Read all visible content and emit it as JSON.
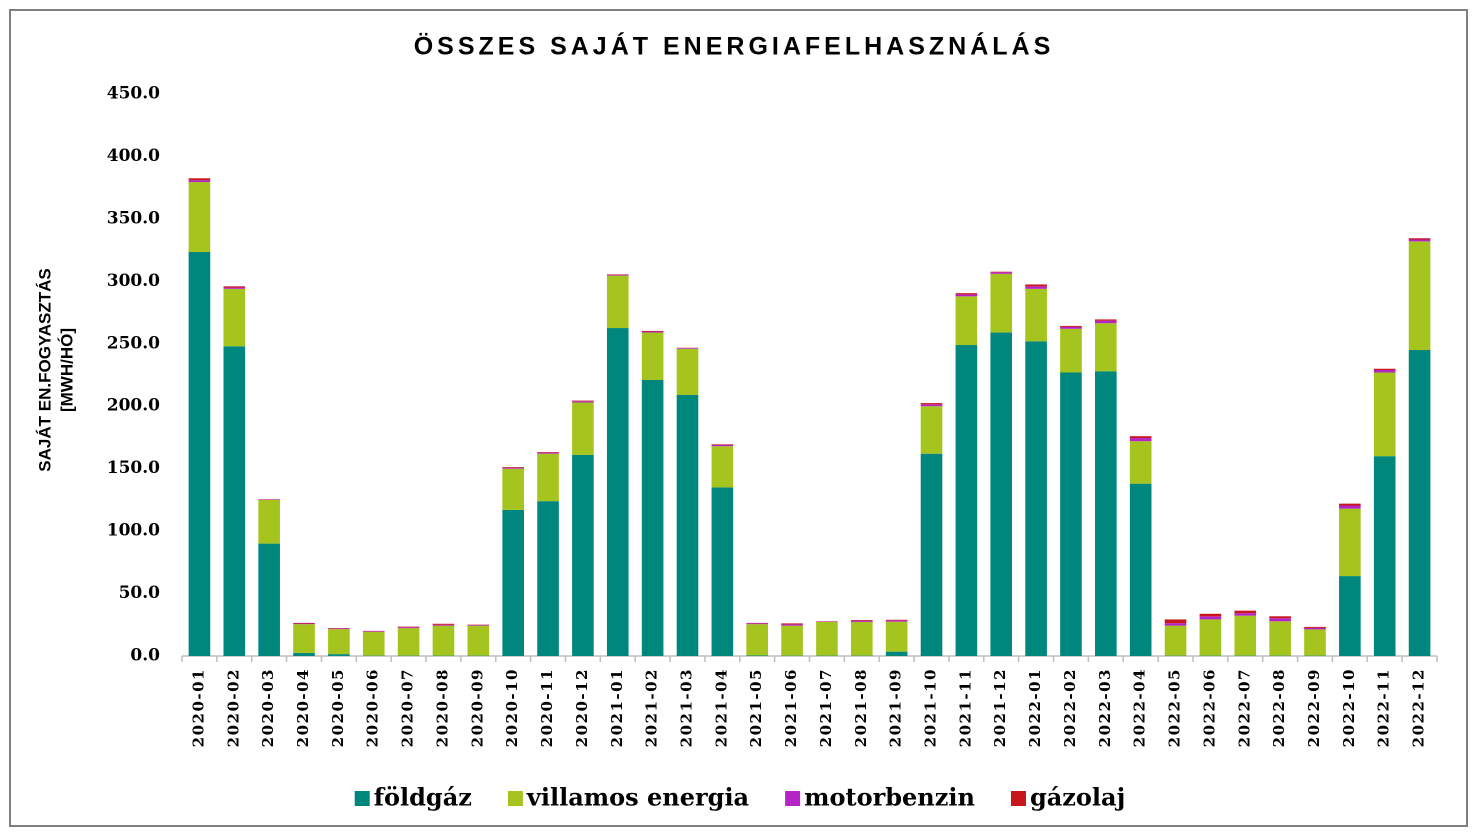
{
  "chart_data": {
    "type": "stacked_bar",
    "title": "ÖSSZES SAJÁT ENERGIAFELHASZNÁLÁS",
    "y_label": [
      "SAJÁT EN.FOGYASZTÁS",
      "[MWH/HÓ]"
    ],
    "categories": [
      "2020-01",
      "2020-02",
      "2020-03",
      "2020-04",
      "2020-05",
      "2020-06",
      "2020-07",
      "2020-08",
      "2020-09",
      "2020-10",
      "2020-11",
      "2020-12",
      "2021-01",
      "2021-02",
      "2021-03",
      "2021-04",
      "2021-05",
      "2021-06",
      "2021-07",
      "2021-08",
      "2021-09",
      "2021-10",
      "2021-11",
      "2021-12",
      "2022-01",
      "2022-02",
      "2022-03",
      "2022-04",
      "2022-05",
      "2022-06",
      "2022-07",
      "2022-08",
      "2022-09",
      "2022-10",
      "2022-11",
      "2022-12"
    ],
    "series": [
      {
        "name": "földgáz",
        "color": "#00877d",
        "values": [
          323.5,
          248,
          90,
          2.5,
          1.5,
          0.3,
          0.3,
          0.3,
          0.3,
          117,
          124,
          161,
          262.6,
          221,
          209,
          135,
          0.5,
          0.3,
          0.3,
          0.3,
          3.5,
          162,
          249,
          259,
          252,
          227,
          228,
          138,
          0.3,
          0.3,
          0.3,
          0.3,
          0.3,
          64,
          160,
          245
        ]
      },
      {
        "name": "villamos energia",
        "color": "#a5c41d",
        "values": [
          56,
          46,
          35,
          23,
          20,
          19,
          22,
          24,
          24,
          33,
          38,
          42,
          42,
          38,
          37,
          33,
          25,
          24,
          27,
          27,
          24,
          38,
          39,
          47,
          42,
          35,
          38.5,
          34,
          24,
          29,
          32,
          27.5,
          21,
          54,
          67,
          87
        ]
      },
      {
        "name": "motorbenzin",
        "color": "#b524c6",
        "values": [
          1.5,
          1,
          0.3,
          0.5,
          0.5,
          0.5,
          0.7,
          0.7,
          0.5,
          0.8,
          0.8,
          1,
          0.6,
          0.8,
          0.5,
          1,
          0.7,
          1,
          0.3,
          1,
          1,
          1.5,
          1.5,
          1.2,
          2,
          1.5,
          2,
          2.5,
          2,
          2.5,
          2,
          2.5,
          1.2,
          2.5,
          2,
          1.5
        ]
      },
      {
        "name": "gázolaj",
        "color": "#c8161d",
        "values": [
          1.5,
          1,
          0.2,
          0.5,
          0.3,
          0.3,
          0.5,
          0.8,
          0.3,
          0.5,
          0.5,
          0.5,
          0.4,
          0.5,
          0.3,
          0.5,
          0.3,
          0.8,
          0.2,
          0.5,
          0.5,
          1,
          1,
          0.5,
          1.5,
          0.8,
          1,
          1.5,
          3,
          2,
          2,
          1.5,
          0.8,
          1.5,
          1,
          1
        ]
      }
    ],
    "ylim": [
      0,
      450
    ],
    "yticks": [
      {
        "value": 0,
        "label": "0.0"
      },
      {
        "value": 50,
        "label": "50.0"
      },
      {
        "value": 100,
        "label": "100.0"
      },
      {
        "value": 150,
        "label": "150.0"
      },
      {
        "value": 200,
        "label": "200.0"
      },
      {
        "value": 250,
        "label": "250.0"
      },
      {
        "value": 300,
        "label": "300.0"
      },
      {
        "value": 350,
        "label": "350.0"
      },
      {
        "value": 400,
        "label": "400.0"
      },
      {
        "value": 450,
        "label": "450.0"
      }
    ],
    "grid": false,
    "legend": "bottom"
  }
}
